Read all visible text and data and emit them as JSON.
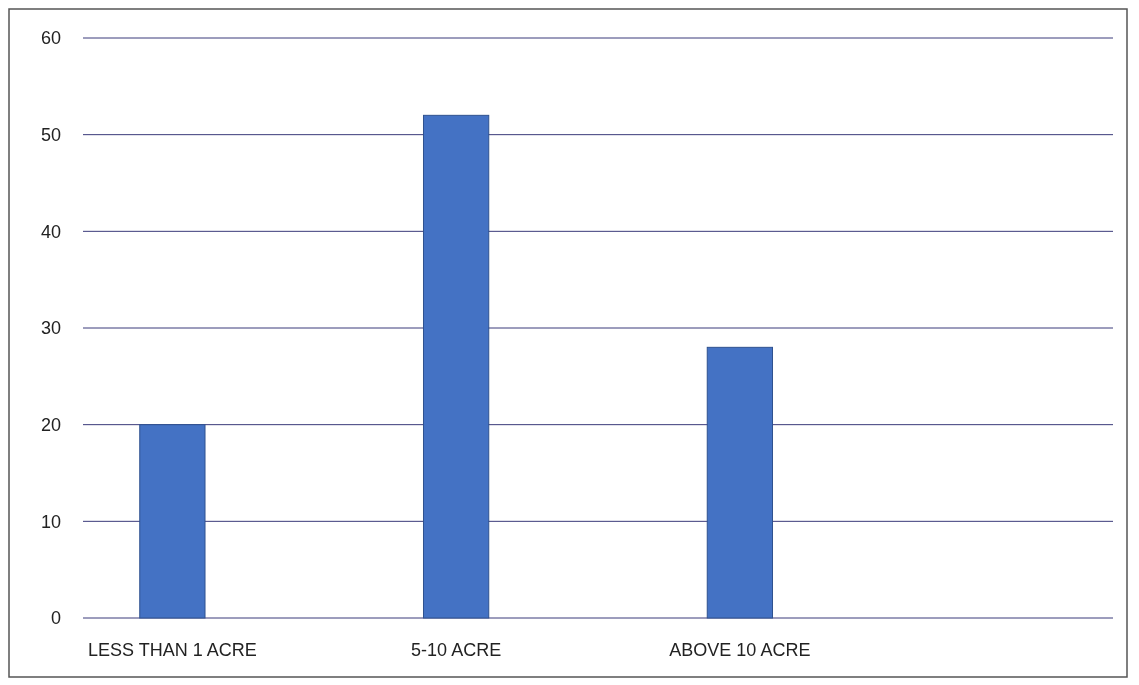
{
  "chart_data": {
    "type": "bar",
    "categories": [
      "LESS THAN 1 ACRE",
      "5-10 ACRE",
      "ABOVE 10 ACRE",
      null
    ],
    "values": [
      20,
      52,
      28,
      null
    ],
    "color": "#4472c4",
    "ylim": [
      0,
      60
    ],
    "yticks": [
      0,
      10,
      20,
      30,
      40,
      50,
      60
    ],
    "grid": "y"
  }
}
